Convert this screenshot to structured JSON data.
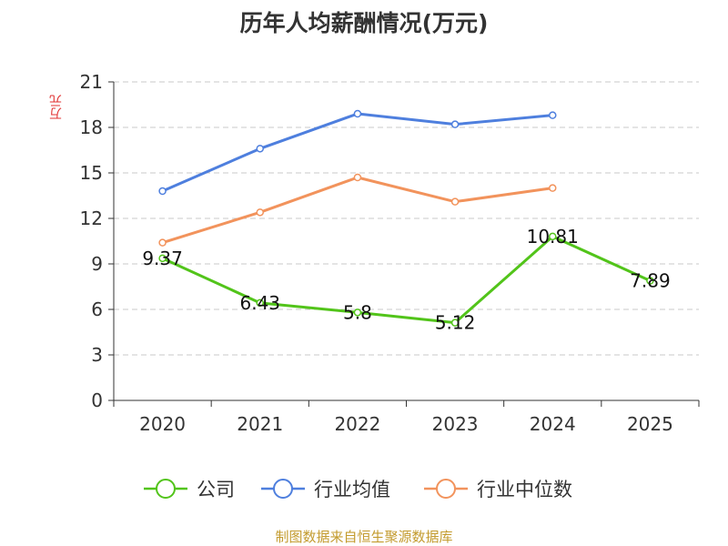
{
  "chart_data": {
    "type": "line",
    "title": "历年人均薪酬情况(万元)",
    "ylabel": "万元",
    "xlabel": "",
    "categories": [
      "2020",
      "2021",
      "2022",
      "2023",
      "2024",
      "2025"
    ],
    "ylim": [
      0,
      21
    ],
    "yticks": [
      0,
      3,
      6,
      9,
      12,
      15,
      18,
      21
    ],
    "grid": true,
    "legend_position": "bottom",
    "series": [
      {
        "name": "公司",
        "color": "#52c41a",
        "values": [
          9.37,
          6.43,
          5.8,
          5.12,
          10.81,
          7.89
        ],
        "show_labels": true
      },
      {
        "name": "行业均值",
        "color": "#4e7fde",
        "values": [
          13.8,
          16.6,
          18.9,
          18.2,
          18.8,
          null
        ],
        "show_labels": false
      },
      {
        "name": "行业中位数",
        "color": "#f2935c",
        "values": [
          10.4,
          12.4,
          14.7,
          13.1,
          14.0,
          null
        ],
        "show_labels": false
      }
    ]
  },
  "source_text": "制图数据来自恒生聚源数据库"
}
